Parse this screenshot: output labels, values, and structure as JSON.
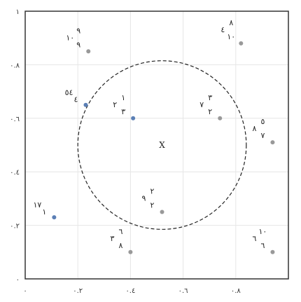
{
  "chart_data": {
    "type": "scatter",
    "xlim": [
      0,
      1
    ],
    "ylim": [
      0,
      1
    ],
    "x_ticks": [
      {
        "value": 0.0,
        "label": "٠"
      },
      {
        "value": 0.2,
        "label": "٠.٢"
      },
      {
        "value": 0.4,
        "label": "٠.٤"
      },
      {
        "value": 0.6,
        "label": "٠.٦"
      },
      {
        "value": 0.8,
        "label": "٠.٨"
      }
    ],
    "y_ticks": [
      {
        "value": 0.0,
        "label": "٠"
      },
      {
        "value": 0.2,
        "label": "٠.٢"
      },
      {
        "value": 0.4,
        "label": "٠.٤"
      },
      {
        "value": 0.6,
        "label": "٠.٦"
      },
      {
        "value": 0.8,
        "label": "٠.٨"
      },
      {
        "value": 1.0,
        "label": "١"
      }
    ],
    "grid": true,
    "center": {
      "x": 0.52,
      "y": 0.5,
      "label": "X"
    },
    "circle_radius": 0.32,
    "points": [
      {
        "x": 0.11,
        "y": 0.23,
        "color": "#5b7fb5",
        "labels": [
          "١٧",
          "١"
        ]
      },
      {
        "x": 0.24,
        "y": 0.85,
        "color": "#999999",
        "labels": [
          "٩",
          "١٠",
          "٩"
        ]
      },
      {
        "x": 0.23,
        "y": 0.65,
        "color": "#5b7fb5",
        "labels": [
          "٥٤",
          "٤"
        ]
      },
      {
        "x": 0.41,
        "y": 0.6,
        "color": "#5b7fb5",
        "labels": [
          "١",
          "٢",
          "٣"
        ]
      },
      {
        "x": 0.82,
        "y": 0.88,
        "color": "#999999",
        "labels": [
          "٨",
          "٤",
          "١٠"
        ]
      },
      {
        "x": 0.74,
        "y": 0.6,
        "color": "#999999",
        "labels": [
          "٣",
          "٧",
          "٢"
        ]
      },
      {
        "x": 0.94,
        "y": 0.51,
        "color": "#999999",
        "labels": [
          "٥",
          "٨",
          "٧"
        ]
      },
      {
        "x": 0.52,
        "y": 0.25,
        "color": "#999999",
        "labels": [
          "٢",
          "٩",
          "٢"
        ]
      },
      {
        "x": 0.4,
        "y": 0.1,
        "color": "#999999",
        "labels": [
          "٦",
          "٣",
          "٨"
        ]
      },
      {
        "x": 0.94,
        "y": 0.1,
        "color": "#999999",
        "labels": [
          "١٠",
          "٦",
          "٦"
        ]
      }
    ]
  }
}
